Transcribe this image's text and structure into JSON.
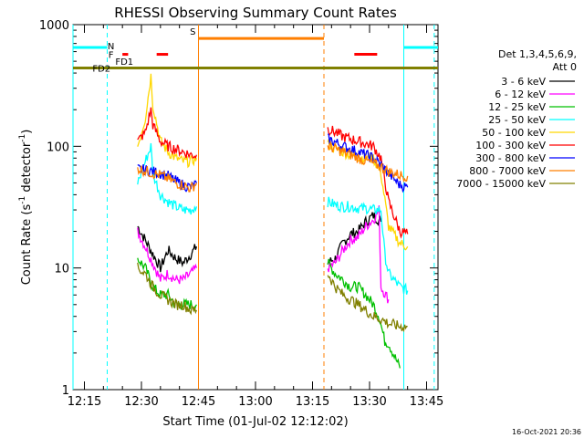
{
  "chart_data": {
    "type": "line",
    "title": "RHESSI Observing Summary Count Rates",
    "xlabel": "Start Time (01-Jul-02 12:12:02)",
    "ylabel_parts": [
      "Count Rate (s",
      "-1",
      " detector",
      "-1",
      ")"
    ],
    "yscale": "log",
    "ylim": [
      1,
      1000
    ],
    "xlim_minutes": [
      0,
      96
    ],
    "x_ticks": [
      {
        "m": 3,
        "label": "12:15"
      },
      {
        "m": 18,
        "label": "12:30"
      },
      {
        "m": 33,
        "label": "12:45"
      },
      {
        "m": 48,
        "label": "13:00"
      },
      {
        "m": 63,
        "label": "13:15"
      },
      {
        "m": 78,
        "label": "13:30"
      },
      {
        "m": 93,
        "label": "13:45"
      }
    ],
    "y_ticks": [
      {
        "v": 1,
        "label": "1"
      },
      {
        "v": 10,
        "label": "10"
      },
      {
        "v": 100,
        "label": "100"
      },
      {
        "v": 1000,
        "label": "1000"
      }
    ],
    "legend_header": [
      "Det 1,3,4,5,6,9,",
      "Att 0"
    ],
    "legend_placement": "right",
    "series": [
      {
        "name": "3 - 6 keV",
        "color": "#000000",
        "segments": [
          [
            [
              17,
              22
            ],
            [
              19,
              17
            ],
            [
              21,
              13
            ],
            [
              23,
              10
            ],
            [
              25,
              14
            ],
            [
              27,
              12
            ],
            [
              29,
              11
            ],
            [
              31,
              13
            ],
            [
              32.5,
              15
            ]
          ],
          [
            [
              67,
              11
            ],
            [
              69,
              12
            ],
            [
              71,
              16
            ],
            [
              73,
              19
            ],
            [
              75,
              20
            ],
            [
              77,
              24
            ],
            [
              79,
              27
            ],
            [
              81,
              24
            ]
          ]
        ]
      },
      {
        "name": "6 - 12 keV",
        "color": "#ff00ff",
        "segments": [
          [
            [
              17,
              20
            ],
            [
              19,
              15
            ],
            [
              21,
              11
            ],
            [
              23,
              8
            ],
            [
              25,
              9
            ],
            [
              27,
              8
            ],
            [
              29,
              8
            ],
            [
              31,
              9
            ],
            [
              32.5,
              10
            ]
          ],
          [
            [
              67,
              10
            ],
            [
              69,
              11
            ],
            [
              71,
              14
            ],
            [
              73,
              17
            ],
            [
              75,
              18
            ],
            [
              77,
              22
            ],
            [
              79,
              25
            ],
            [
              80.5,
              30
            ],
            [
              81,
              7
            ],
            [
              83,
              5.5
            ]
          ]
        ]
      },
      {
        "name": "12 - 25 keV",
        "color": "#00c000",
        "segments": [
          [
            [
              17,
              12
            ],
            [
              19,
              10
            ],
            [
              21,
              7
            ],
            [
              23,
              6
            ],
            [
              25,
              6
            ],
            [
              27,
              5
            ],
            [
              29,
              5
            ],
            [
              31,
              5
            ],
            [
              32.5,
              5
            ]
          ],
          [
            [
              67,
              11
            ],
            [
              69,
              9
            ],
            [
              71,
              8
            ],
            [
              73,
              7
            ],
            [
              75,
              7
            ],
            [
              77,
              6
            ],
            [
              79,
              5
            ],
            [
              80.5,
              4
            ],
            [
              82,
              2.5
            ],
            [
              83,
              2.4
            ],
            [
              86,
              1.5
            ]
          ]
        ]
      },
      {
        "name": "25 - 50 keV",
        "color": "#00ffff",
        "segments": [
          [
            [
              17,
              50
            ],
            [
              19,
              75
            ],
            [
              20.5,
              100
            ],
            [
              21,
              60
            ],
            [
              23,
              40
            ],
            [
              25,
              35
            ],
            [
              27,
              32
            ],
            [
              29,
              30
            ],
            [
              31,
              30
            ],
            [
              32.5,
              32
            ]
          ],
          [
            [
              67,
              35
            ],
            [
              69,
              33
            ],
            [
              71,
              32
            ],
            [
              73,
              32
            ],
            [
              75,
              31
            ],
            [
              77,
              31
            ],
            [
              79,
              30
            ],
            [
              81,
              30
            ],
            [
              82,
              13
            ],
            [
              83,
              9
            ],
            [
              86,
              7
            ],
            [
              88,
              6.5
            ]
          ]
        ]
      },
      {
        "name": "50 - 100 keV",
        "color": "#ffd700",
        "segments": [
          [
            [
              17,
              100
            ],
            [
              19,
              170
            ],
            [
              20.5,
              380
            ],
            [
              21,
              220
            ],
            [
              23,
              110
            ],
            [
              25,
              90
            ],
            [
              27,
              80
            ],
            [
              29,
              75
            ],
            [
              31,
              75
            ],
            [
              32.5,
              80
            ]
          ],
          [
            [
              67,
              105
            ],
            [
              69,
              95
            ],
            [
              71,
              90
            ],
            [
              73,
              85
            ],
            [
              75,
              82
            ],
            [
              77,
              80
            ],
            [
              79,
              80
            ],
            [
              81,
              60
            ],
            [
              83,
              22
            ],
            [
              86,
              16
            ],
            [
              88,
              15
            ]
          ]
        ]
      },
      {
        "name": "100 - 300 keV",
        "color": "#ff0000",
        "segments": [
          [
            [
              17,
              110
            ],
            [
              19,
              130
            ],
            [
              20.5,
              200
            ],
            [
              21,
              150
            ],
            [
              23,
              110
            ],
            [
              25,
              100
            ],
            [
              27,
              95
            ],
            [
              29,
              90
            ],
            [
              31,
              85
            ],
            [
              32.5,
              85
            ]
          ],
          [
            [
              67,
              140
            ],
            [
              69,
              130
            ],
            [
              71,
              120
            ],
            [
              73,
              115
            ],
            [
              75,
              110
            ],
            [
              77,
              105
            ],
            [
              79,
              100
            ],
            [
              81,
              80
            ],
            [
              83,
              35
            ],
            [
              86,
              20
            ],
            [
              88,
              19
            ]
          ]
        ]
      },
      {
        "name": "300 - 800 keV",
        "color": "#0000ff",
        "segments": [
          [
            [
              17,
              65
            ],
            [
              19,
              64
            ],
            [
              21,
              62
            ],
            [
              23,
              60
            ],
            [
              25,
              57
            ],
            [
              27,
              52
            ],
            [
              29,
              48
            ],
            [
              31,
              46
            ],
            [
              32.5,
              50
            ]
          ],
          [
            [
              67,
              115
            ],
            [
              69,
              108
            ],
            [
              71,
              100
            ],
            [
              73,
              95
            ],
            [
              75,
              90
            ],
            [
              77,
              85
            ],
            [
              79,
              80
            ],
            [
              81,
              70
            ],
            [
              83,
              60
            ],
            [
              86,
              48
            ],
            [
              88,
              46
            ]
          ]
        ]
      },
      {
        "name": "800 - 7000 keV",
        "color": "#ff7f00",
        "segments": [
          [
            [
              17,
              66
            ],
            [
              19,
              63
            ],
            [
              21,
              60
            ],
            [
              23,
              58
            ],
            [
              25,
              54
            ],
            [
              27,
              50
            ],
            [
              29,
              48
            ],
            [
              31,
              45
            ],
            [
              32.5,
              50
            ]
          ],
          [
            [
              67,
              100
            ],
            [
              69,
              95
            ],
            [
              71,
              90
            ],
            [
              73,
              85
            ],
            [
              75,
              80
            ],
            [
              77,
              76
            ],
            [
              79,
              72
            ],
            [
              81,
              68
            ],
            [
              83,
              62
            ],
            [
              86,
              58
            ],
            [
              88,
              57
            ]
          ]
        ]
      },
      {
        "name": "7000 - 15000 keV",
        "color": "#808000",
        "segments": [
          [
            [
              17,
              10
            ],
            [
              19,
              9
            ],
            [
              21,
              7
            ],
            [
              23,
              6
            ],
            [
              25,
              5.5
            ],
            [
              27,
              5
            ],
            [
              29,
              5
            ],
            [
              31,
              4.5
            ],
            [
              32.5,
              4.5
            ]
          ],
          [
            [
              67,
              9
            ],
            [
              69,
              7
            ],
            [
              71,
              6
            ],
            [
              73,
              5.5
            ],
            [
              75,
              5
            ],
            [
              77,
              4.5
            ],
            [
              79,
              4
            ],
            [
              81,
              3.8
            ],
            [
              83,
              3.5
            ],
            [
              86,
              3.3
            ],
            [
              88,
              3.3
            ]
          ]
        ]
      }
    ],
    "flags": [
      {
        "label": "N",
        "color": "#00ffff",
        "value": 650,
        "segments": [
          [
            0,
            9
          ],
          [
            87,
            96
          ]
        ]
      },
      {
        "label": "F",
        "color": "#ff0000",
        "value": 570,
        "segments": [
          [
            13,
            14.5
          ],
          [
            22,
            25
          ],
          [
            74,
            80
          ]
        ]
      },
      {
        "label": "S",
        "color": "#ff7f00",
        "value": 770,
        "segments": [
          [
            33,
            66
          ]
        ]
      },
      {
        "label": "FD1",
        "color": "#ffd700",
        "value": 500,
        "segments": []
      },
      {
        "label": "FD2",
        "color": "#808000",
        "value": 440,
        "segments": [
          [
            0,
            96
          ]
        ]
      }
    ],
    "vlines": [
      {
        "m": 0,
        "color": "#00ffff",
        "dash": false
      },
      {
        "m": 9,
        "color": "#00ffff",
        "dash": true
      },
      {
        "m": 33,
        "color": "#ff7f00",
        "dash": false
      },
      {
        "m": 66,
        "color": "#ff7f00",
        "dash": true
      },
      {
        "m": 87,
        "color": "#00ffff",
        "dash": false
      },
      {
        "m": 95,
        "color": "#00ffff",
        "dash": true
      }
    ]
  },
  "footer": {
    "timestamp": "16-Oct-2021 20:36"
  }
}
